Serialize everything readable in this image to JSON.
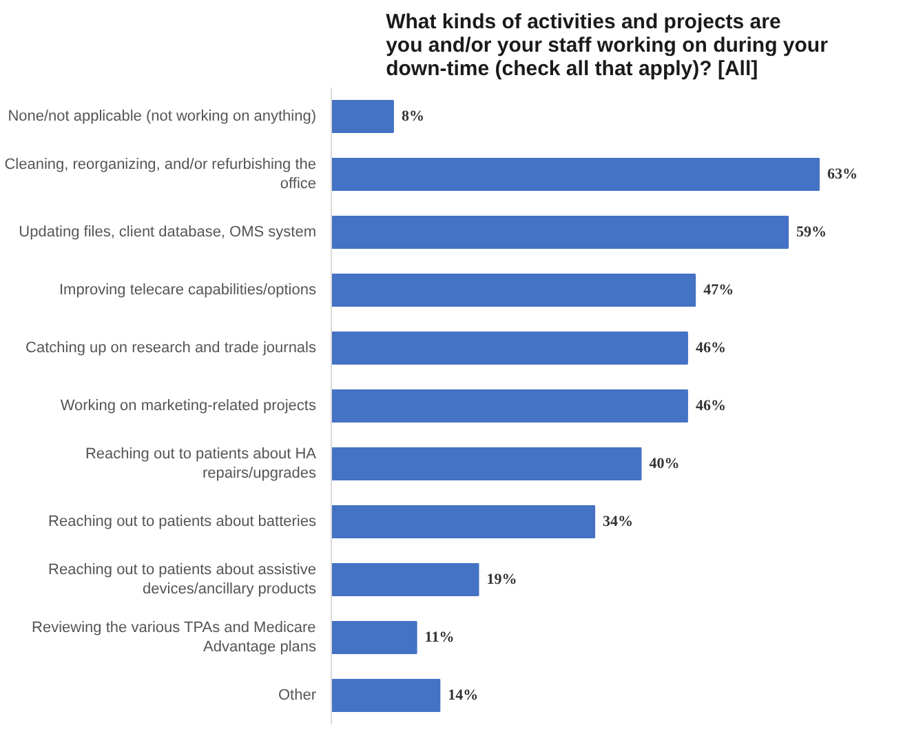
{
  "chart_data": {
    "type": "bar",
    "orientation": "horizontal",
    "title": "What kinds of activities and projects are you and/or your staff working on during your down-time (check all that apply)? [All]",
    "categories": [
      "None/not applicable (not working on anything)",
      "Cleaning, reorganizing, and/or refurbishing the office",
      "Updating files, client database, OMS system",
      "Improving telecare capabilities/options",
      "Catching up on research and trade journals",
      "Working on marketing-related projects",
      "Reaching out to patients about HA repairs/upgrades",
      "Reaching out to patients about batteries",
      "Reaching out to patients about assistive devices/ancillary products",
      "Reviewing the various TPAs and Medicare Advantage plans",
      "Other"
    ],
    "values": [
      8,
      63,
      59,
      47,
      46,
      46,
      40,
      34,
      19,
      11,
      14
    ],
    "value_labels": [
      "8%",
      "63%",
      "59%",
      "47%",
      "46%",
      "46%",
      "40%",
      "34%",
      "19%",
      "11%",
      "14%"
    ],
    "color": "#4472c4",
    "grid": false
  }
}
